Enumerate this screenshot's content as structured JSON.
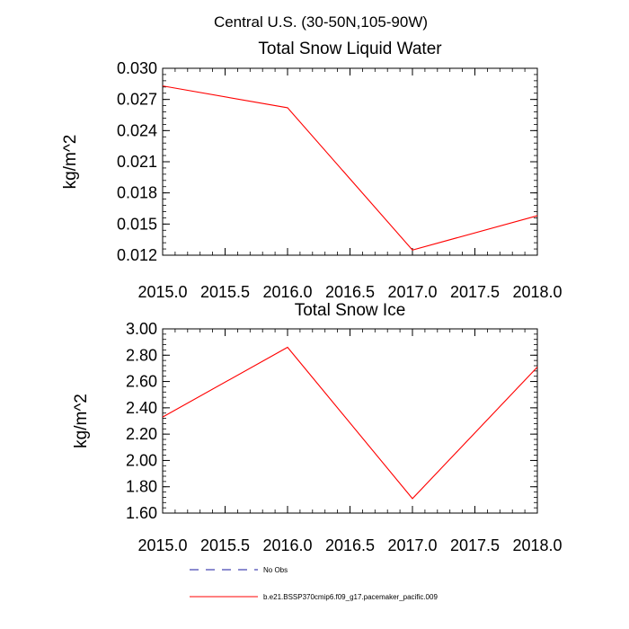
{
  "figure": {
    "title": "Central U.S. (30-50N,105-90W)"
  },
  "chart_data": [
    {
      "type": "line",
      "title": "Total Snow Liquid Water",
      "ylabel": "kg/m^2",
      "xlabel": "",
      "xlim": [
        2015.0,
        2018.0
      ],
      "ylim": [
        0.012,
        0.03
      ],
      "xticks": [
        "2015.0",
        "2015.5",
        "2016.0",
        "2016.5",
        "2017.0",
        "2017.5",
        "2018.0"
      ],
      "xtick_values": [
        2015.0,
        2015.5,
        2016.0,
        2016.5,
        2017.0,
        2017.5,
        2018.0
      ],
      "yticks": [
        "0.012",
        "0.015",
        "0.018",
        "0.021",
        "0.024",
        "0.027",
        "0.030"
      ],
      "ytick_values": [
        0.012,
        0.015,
        0.018,
        0.021,
        0.024,
        0.027,
        0.03
      ],
      "series": [
        {
          "name": "b.e21.BSSP370cmip6.f09_g17.pacemaker_pacific.009",
          "color": "#ff0000",
          "x": [
            2015,
            2016,
            2017,
            2018
          ],
          "y": [
            0.0283,
            0.0262,
            0.0125,
            0.0158
          ]
        }
      ]
    },
    {
      "type": "line",
      "title": "Total Snow Ice",
      "ylabel": "kg/m^2",
      "xlabel": "",
      "xlim": [
        2015.0,
        2018.0
      ],
      "ylim": [
        1.6,
        3.0
      ],
      "xticks": [
        "2015.0",
        "2015.5",
        "2016.0",
        "2016.5",
        "2017.0",
        "2017.5",
        "2018.0"
      ],
      "xtick_values": [
        2015.0,
        2015.5,
        2016.0,
        2016.5,
        2017.0,
        2017.5,
        2018.0
      ],
      "yticks": [
        "1.60",
        "1.80",
        "2.00",
        "2.20",
        "2.40",
        "2.60",
        "2.80",
        "3.00"
      ],
      "ytick_values": [
        1.6,
        1.8,
        2.0,
        2.2,
        2.4,
        2.6,
        2.8,
        3.0
      ],
      "series": [
        {
          "name": "b.e21.BSSP370cmip6.f09_g17.pacemaker_pacific.009",
          "color": "#ff0000",
          "x": [
            2015,
            2016,
            2017,
            2018
          ],
          "y": [
            2.33,
            2.86,
            1.71,
            2.71
          ]
        }
      ]
    }
  ],
  "legend": {
    "items": [
      {
        "label": "No Obs",
        "color": "#1a1aa0",
        "style": "dashed"
      },
      {
        "label": "b.e21.BSSP370cmip6.f09_g17.pacemaker_pacific.009",
        "color": "#ff0000",
        "style": "solid"
      }
    ]
  }
}
